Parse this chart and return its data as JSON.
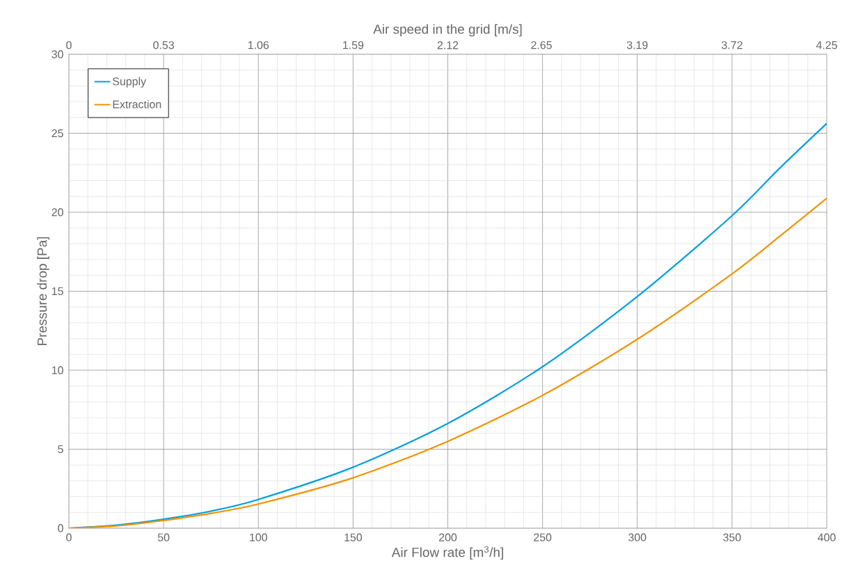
{
  "chart_data": {
    "type": "line",
    "xlabel": "Air Flow rate [m$^{3}$/h]",
    "ylabel": "Pressure drop [Pa]",
    "x2label": "Air speed in the grid [m/s]",
    "x": [
      0,
      25,
      50,
      75,
      100,
      150,
      200,
      250,
      300,
      350,
      375,
      400
    ],
    "series": [
      {
        "name": "Supply",
        "color": "#009fe3",
        "values": [
          0,
          0.19,
          0.57,
          1.08,
          1.82,
          3.86,
          6.63,
          10.22,
          14.66,
          19.78,
          22.77,
          25.62
        ]
      },
      {
        "name": "Extraction",
        "color": "#f39200",
        "values": [
          0,
          0.15,
          0.49,
          0.94,
          1.53,
          3.19,
          5.5,
          8.41,
          11.96,
          16.1,
          18.46,
          20.89
        ]
      }
    ],
    "xlim": [
      0,
      400
    ],
    "xticks": [
      0,
      50,
      100,
      150,
      200,
      250,
      300,
      350,
      400
    ],
    "ylim": [
      0,
      30
    ],
    "yticks": [
      0,
      5,
      10,
      15,
      20,
      25,
      30
    ],
    "x2lim": [
      0,
      4.25
    ],
    "x2ticks": [
      0,
      {
        "value": 0.53125,
        "label": "0.53"
      },
      {
        "value": 1.0625,
        "label": "1.06"
      },
      {
        "value": 1.59375,
        "label": "1.59"
      },
      {
        "value": 2.125,
        "label": "2.12"
      },
      {
        "value": 2.65,
        "label": "2.65"
      },
      {
        "value": 3.1875,
        "label": "3.19"
      },
      {
        "value": 3.71875,
        "label": "3.72"
      },
      4.25
    ],
    "grid": true,
    "legend": "top left"
  }
}
